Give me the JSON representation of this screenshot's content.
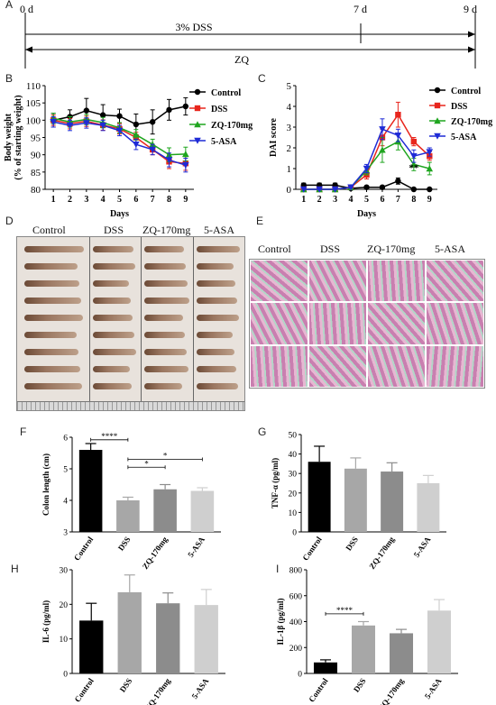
{
  "panel_A": {
    "label": "A",
    "start": "0 d",
    "mid": "7 d",
    "end": "9 d",
    "dss_label": "3% DSS",
    "zq_label": "ZQ"
  },
  "panel_D": {
    "label": "D",
    "headers": [
      "Control",
      "DSS",
      "ZQ-170mg",
      "5-ASA"
    ]
  },
  "panel_E": {
    "label": "E",
    "headers": [
      "Control",
      "DSS",
      "ZQ-170mg",
      "5-ASA"
    ]
  },
  "colors": {
    "control": "#000000",
    "dss": "#e8261d",
    "zq": "#1fa51f",
    "asa": "#1f2bd6"
  },
  "chart_data": [
    {
      "id": "B",
      "panel_label": "B",
      "type": "line",
      "xlabel": "Days",
      "ylabel": "Body weight",
      "ylabel2": "(% of starting weight)",
      "x": [
        1,
        2,
        3,
        4,
        5,
        6,
        7,
        8,
        9
      ],
      "ylim": [
        80,
        110
      ],
      "yticks": [
        80,
        85,
        90,
        95,
        100,
        105,
        110
      ],
      "legend_placement": "right",
      "series": [
        {
          "name": "Control",
          "color": "#000000",
          "marker": "circle",
          "values": [
            100,
            101,
            102.8,
            101.5,
            101.2,
            98.8,
            99.5,
            103,
            104
          ],
          "err": [
            2,
            2,
            3.5,
            3,
            2,
            3,
            3.5,
            3,
            2.5
          ]
        },
        {
          "name": "DSS",
          "color": "#e8261d",
          "marker": "square",
          "values": [
            100,
            99,
            99.7,
            98.6,
            97.5,
            95,
            91.5,
            88,
            87.5
          ],
          "err": [
            1.5,
            1.5,
            1.5,
            1.5,
            1.5,
            1.5,
            1.5,
            2,
            2
          ]
        },
        {
          "name": "ZQ-170mg",
          "color": "#1fa51f",
          "marker": "triangle",
          "values": [
            100.5,
            99.5,
            100.2,
            99.3,
            97.8,
            95.8,
            93,
            90,
            90.2
          ],
          "err": [
            1.5,
            1.5,
            1.5,
            1.5,
            1.5,
            1.5,
            1.5,
            2,
            2
          ]
        },
        {
          "name": "5-ASA",
          "color": "#1f2bd6",
          "marker": "invtriangle",
          "values": [
            99.5,
            98.5,
            99.2,
            98.5,
            97,
            93,
            91.5,
            88.5,
            87
          ],
          "err": [
            1.5,
            1.5,
            1.5,
            1.5,
            1.5,
            1.5,
            1.5,
            2,
            2
          ]
        }
      ]
    },
    {
      "id": "C",
      "panel_label": "C",
      "type": "line",
      "xlabel": "Days",
      "ylabel": "DAI score",
      "x": [
        1,
        2,
        3,
        4,
        5,
        6,
        7,
        8,
        9
      ],
      "ylim": [
        0,
        5
      ],
      "yticks": [
        0,
        1,
        2,
        3,
        4,
        5
      ],
      "legend_placement": "top-right",
      "annotation": {
        "text": "**",
        "x": 8,
        "y": 0.9
      },
      "series": [
        {
          "name": "Control",
          "color": "#000000",
          "marker": "circle",
          "values": [
            0.2,
            0.2,
            0.2,
            0.05,
            0.1,
            0.1,
            0.4,
            0,
            0
          ],
          "err": [
            0.1,
            0.1,
            0.1,
            0.05,
            0.05,
            0.05,
            0.15,
            0,
            0
          ]
        },
        {
          "name": "DSS",
          "color": "#e8261d",
          "marker": "square",
          "values": [
            0,
            0,
            0,
            0.1,
            0.7,
            2.5,
            3.6,
            2.3,
            1.6
          ],
          "err": [
            0,
            0,
            0,
            0.05,
            0.2,
            0.4,
            0.6,
            0.2,
            0.2
          ]
        },
        {
          "name": "ZQ-170mg",
          "color": "#1fa51f",
          "marker": "triangle",
          "values": [
            0,
            0,
            0,
            0.1,
            0.9,
            1.9,
            2.3,
            1.2,
            1.0
          ],
          "err": [
            0,
            0,
            0,
            0.05,
            0.2,
            0.6,
            0.4,
            0.3,
            0.3
          ]
        },
        {
          "name": "5-ASA",
          "color": "#1f2bd6",
          "marker": "invtriangle",
          "values": [
            0,
            0,
            0,
            0.1,
            1.0,
            2.9,
            2.6,
            1.6,
            1.8
          ],
          "err": [
            0,
            0,
            0,
            0.05,
            0.2,
            0.5,
            0.3,
            0.3,
            0.2
          ]
        }
      ]
    },
    {
      "id": "F",
      "panel_label": "F",
      "type": "bar",
      "ylabel": "Colon length (cm)",
      "categories": [
        "Control",
        "DSS",
        "ZQ-170mg",
        "5-ASA"
      ],
      "values": [
        5.6,
        4.0,
        4.35,
        4.3
      ],
      "err": [
        0.2,
        0.1,
        0.15,
        0.1
      ],
      "ylim": [
        3,
        6
      ],
      "yticks": [
        3,
        4,
        5,
        6
      ],
      "bar_colors": [
        "#000000",
        "#a7a7a7",
        "#8c8c8c",
        "#cfcfcf"
      ],
      "sig": [
        {
          "from": 0,
          "to": 1,
          "y": 5.92,
          "text": "****"
        },
        {
          "from": 1,
          "to": 2,
          "y": 5.05,
          "text": "*"
        },
        {
          "from": 1,
          "to": 3,
          "y": 5.3,
          "text": "*"
        }
      ]
    },
    {
      "id": "G",
      "panel_label": "G",
      "type": "bar",
      "ylabel": "TNF-α (pg/ml)",
      "categories": [
        "Control",
        "DSS",
        "ZQ-170mg",
        "5-ASA"
      ],
      "values": [
        36,
        32.5,
        31,
        25
      ],
      "err": [
        8,
        5.5,
        4.5,
        4
      ],
      "ylim": [
        0,
        50
      ],
      "yticks": [
        0,
        10,
        20,
        30,
        40,
        50
      ],
      "bar_colors": [
        "#000000",
        "#a7a7a7",
        "#8c8c8c",
        "#cfcfcf"
      ],
      "sig": []
    },
    {
      "id": "H",
      "panel_label": "H",
      "type": "bar",
      "ylabel": "IL-6 (pg/ml)",
      "categories": [
        "Control",
        "DSS",
        "ZQ-170mg",
        "5-ASA"
      ],
      "values": [
        15.3,
        23.5,
        20.3,
        19.8
      ],
      "err": [
        5,
        5,
        3,
        4.5
      ],
      "ylim": [
        0,
        30
      ],
      "yticks": [
        0,
        10,
        20,
        30
      ],
      "bar_colors": [
        "#000000",
        "#a7a7a7",
        "#8c8c8c",
        "#cfcfcf"
      ],
      "sig": []
    },
    {
      "id": "I",
      "panel_label": "I",
      "type": "bar",
      "ylabel": "IL-1β (pg/ml)",
      "categories": [
        "Control",
        "DSS",
        "ZQ-170mg",
        "5-ASA"
      ],
      "values": [
        85,
        370,
        310,
        485
      ],
      "err": [
        20,
        30,
        30,
        85
      ],
      "ylim": [
        0,
        800
      ],
      "yticks": [
        0,
        200,
        400,
        600,
        800
      ],
      "bar_colors": [
        "#000000",
        "#a7a7a7",
        "#8c8c8c",
        "#cfcfcf"
      ],
      "sig": [
        {
          "from": 0,
          "to": 1,
          "y": 460,
          "text": "****"
        }
      ]
    }
  ]
}
